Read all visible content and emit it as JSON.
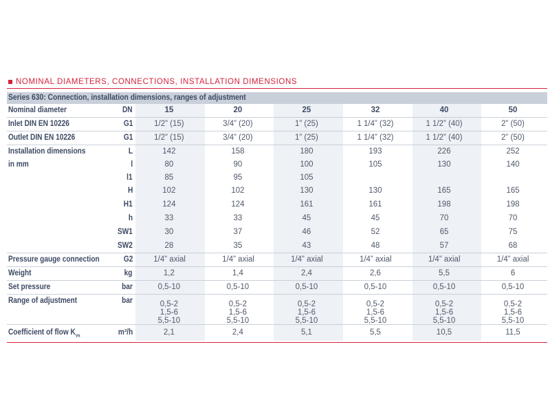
{
  "section": {
    "title": "NOMINAL DIAMETERS, CONNECTIONS, INSTALLATION DIMENSIONS"
  },
  "table": {
    "caption": "Series 630: Connection, installation dimensions, ranges of adjustment",
    "header": {
      "label": "Nominal diameter",
      "unit": "DN",
      "values": [
        "15",
        "20",
        "25",
        "32",
        "40",
        "50"
      ]
    },
    "rows": [
      {
        "label": "Inlet DIN EN 10226",
        "unit": "G1",
        "values": [
          "1/2” (15)",
          "3/4” (20)",
          "1” (25)",
          "1 1/4” (32)",
          "1 1/2” (40)",
          "2” (50)"
        ]
      },
      {
        "label": "Outlet DIN EN 10226",
        "unit": "G1",
        "values": [
          "1/2” (15)",
          "3/4” (20)",
          "1” (25)",
          "1 1/4” (32)",
          "1 1/2” (40)",
          "2” (50)"
        ]
      },
      {
        "label": "Installation dimensions",
        "unit": "L",
        "values": [
          "142",
          "158",
          "180",
          "193",
          "226",
          "252"
        ]
      },
      {
        "label": "in mm",
        "unit": "l",
        "values": [
          "80",
          "90",
          "100",
          "105",
          "130",
          "140"
        ]
      },
      {
        "label": "",
        "unit": "l1",
        "values": [
          "85",
          "95",
          "105",
          "",
          "",
          ""
        ]
      },
      {
        "label": "",
        "unit": "H",
        "values": [
          "102",
          "102",
          "130",
          "130",
          "165",
          "165"
        ]
      },
      {
        "label": "",
        "unit": "H1",
        "values": [
          "124",
          "124",
          "161",
          "161",
          "198",
          "198"
        ]
      },
      {
        "label": "",
        "unit": "h",
        "values": [
          "33",
          "33",
          "45",
          "45",
          "70",
          "70"
        ]
      },
      {
        "label": "",
        "unit": "SW1",
        "values": [
          "30",
          "37",
          "46",
          "52",
          "65",
          "75"
        ]
      },
      {
        "label": "",
        "unit": "SW2",
        "values": [
          "28",
          "35",
          "43",
          "48",
          "57",
          "68"
        ]
      },
      {
        "label": "Pressure gauge connection",
        "unit": "G2",
        "values": [
          "1/4” axial",
          "1/4” axial",
          "1/4” axial",
          "1/4” axial",
          "1/4” axial",
          "1/4” axial"
        ]
      },
      {
        "label": "Weight",
        "unit": "kg",
        "values": [
          "1,2",
          "1,4",
          "2,4",
          "2,6",
          "5,5",
          "6"
        ]
      },
      {
        "label": "Set pressure",
        "unit": "bar",
        "values": [
          "0,5-10",
          "0,5-10",
          "0,5-10",
          "0,5-10",
          "0,5-10",
          "0,5-10"
        ]
      }
    ],
    "adjustment": {
      "label": "Range of adjustment",
      "unit": "bar",
      "lines": [
        "0,5-2",
        "1,5-6",
        "5,5-10"
      ]
    },
    "flow": {
      "label": "Coefficient of flow K",
      "label_sub": "vs",
      "unit": "m³/h",
      "values": [
        "2,1",
        "2,4",
        "5,1",
        "5,5",
        "10,5",
        "11,5"
      ]
    }
  }
}
